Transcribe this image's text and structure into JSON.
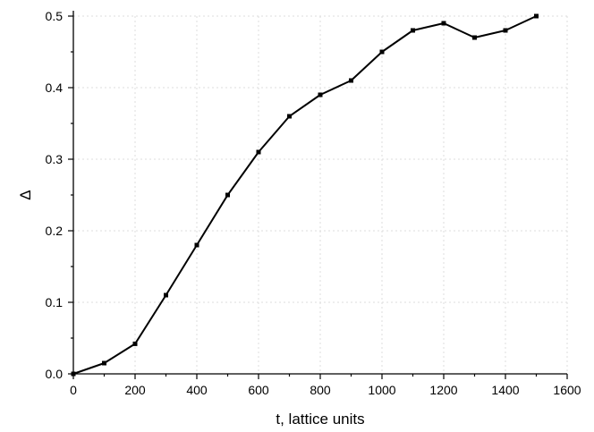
{
  "chart_data": {
    "type": "line",
    "xlabel": "t, lattice units",
    "ylabel": "Δ",
    "xlim": [
      0,
      1600
    ],
    "ylim": [
      0,
      0.5
    ],
    "x_ticks": [
      "0",
      "200",
      "400",
      "600",
      "800",
      "1000",
      "1200",
      "1400",
      "1600"
    ],
    "y_ticks": [
      "0.0",
      "0.1",
      "0.2",
      "0.3",
      "0.4",
      "0.5"
    ],
    "grid": true,
    "series": [
      {
        "color": "#000000",
        "marker": "square",
        "x": [
          0,
          100,
          200,
          300,
          400,
          500,
          600,
          700,
          800,
          900,
          1000,
          1100,
          1200,
          1300,
          1400,
          1500
        ],
        "y": [
          0.0,
          0.015,
          0.042,
          0.11,
          0.18,
          0.25,
          0.31,
          0.36,
          0.39,
          0.41,
          0.45,
          0.48,
          0.49,
          0.47,
          0.48,
          0.5
        ]
      }
    ]
  }
}
